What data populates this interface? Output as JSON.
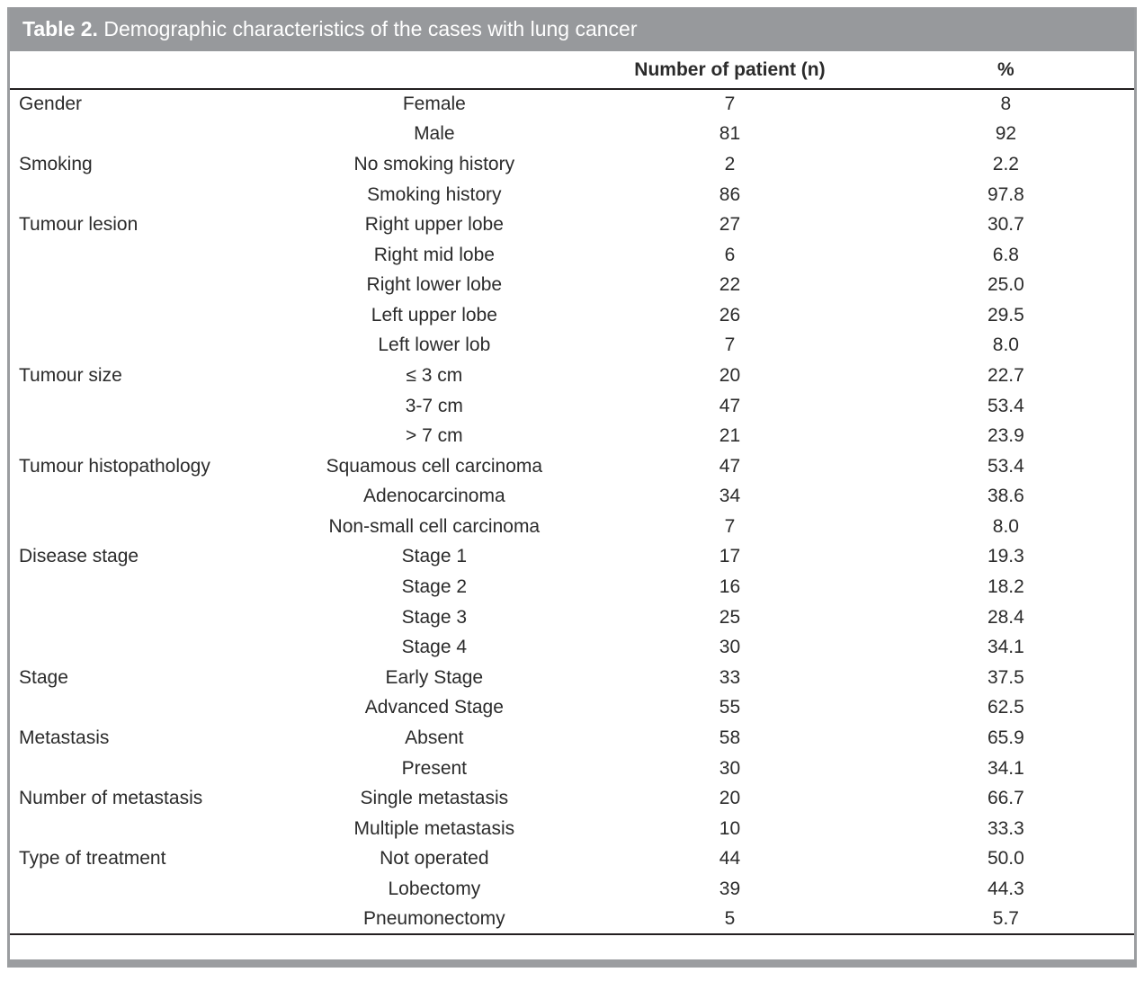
{
  "table": {
    "title_prefix": "Table 2.",
    "title_text": " Demographic characteristics of the cases with lung cancer",
    "columns": {
      "category": "",
      "subcategory": "",
      "n": "Number of patient (n)",
      "pct": "%"
    },
    "rows": [
      {
        "category": "Gender",
        "label": "Female",
        "n": "7",
        "pct": "8"
      },
      {
        "category": "",
        "label": "Male",
        "n": "81",
        "pct": "92"
      },
      {
        "category": "Smoking",
        "label": "No smoking history",
        "n": "2",
        "pct": "2.2"
      },
      {
        "category": "",
        "label": "Smoking history",
        "n": "86",
        "pct": "97.8"
      },
      {
        "category": "Tumour lesion",
        "label": "Right upper lobe",
        "n": "27",
        "pct": "30.7"
      },
      {
        "category": "",
        "label": "Right mid lobe",
        "n": "6",
        "pct": "6.8"
      },
      {
        "category": "",
        "label": "Right lower lobe",
        "n": "22",
        "pct": "25.0"
      },
      {
        "category": "",
        "label": "Left upper lobe",
        "n": "26",
        "pct": "29.5"
      },
      {
        "category": "",
        "label": "Left lower lob",
        "n": "7",
        "pct": "8.0"
      },
      {
        "category": "Tumour size",
        "label": "≤ 3 cm",
        "n": "20",
        "pct": "22.7"
      },
      {
        "category": "",
        "label": "3-7 cm",
        "n": "47",
        "pct": "53.4"
      },
      {
        "category": "",
        "label": "> 7 cm",
        "n": "21",
        "pct": "23.9"
      },
      {
        "category": "Tumour histopathology",
        "label": "Squamous cell carcinoma",
        "n": "47",
        "pct": "53.4"
      },
      {
        "category": "",
        "label": "Adenocarcinoma",
        "n": "34",
        "pct": "38.6"
      },
      {
        "category": "",
        "label": "Non-small cell carcinoma",
        "n": "7",
        "pct": "8.0"
      },
      {
        "category": "Disease stage",
        "label": "Stage 1",
        "n": "17",
        "pct": "19.3"
      },
      {
        "category": "",
        "label": "Stage 2",
        "n": "16",
        "pct": "18.2"
      },
      {
        "category": "",
        "label": "Stage 3",
        "n": "25",
        "pct": "28.4"
      },
      {
        "category": "",
        "label": "Stage 4",
        "n": "30",
        "pct": "34.1"
      },
      {
        "category": "Stage",
        "label": "Early Stage",
        "n": "33",
        "pct": "37.5"
      },
      {
        "category": "",
        "label": "Advanced Stage",
        "n": "55",
        "pct": "62.5"
      },
      {
        "category": "Metastasis",
        "label": "Absent",
        "n": "58",
        "pct": "65.9"
      },
      {
        "category": "",
        "label": "Present",
        "n": "30",
        "pct": "34.1"
      },
      {
        "category": "Number of metastasis",
        "label": "Single metastasis",
        "n": "20",
        "pct": "66.7"
      },
      {
        "category": "",
        "label": "Multiple metastasis",
        "n": "10",
        "pct": "33.3"
      },
      {
        "category": "Type of treatment",
        "label": "Not operated",
        "n": "44",
        "pct": "50.0"
      },
      {
        "category": "",
        "label": "Lobectomy",
        "n": "39",
        "pct": "44.3"
      },
      {
        "category": "",
        "label": "Pneumonectomy",
        "n": "5",
        "pct": "5.7"
      }
    ]
  },
  "colors": {
    "title_bar": "#97999c",
    "outer_border": "#9b9da0",
    "rule_line": "#231f20",
    "title_text": "#ffffff",
    "body_text": "#2b2b2b"
  }
}
